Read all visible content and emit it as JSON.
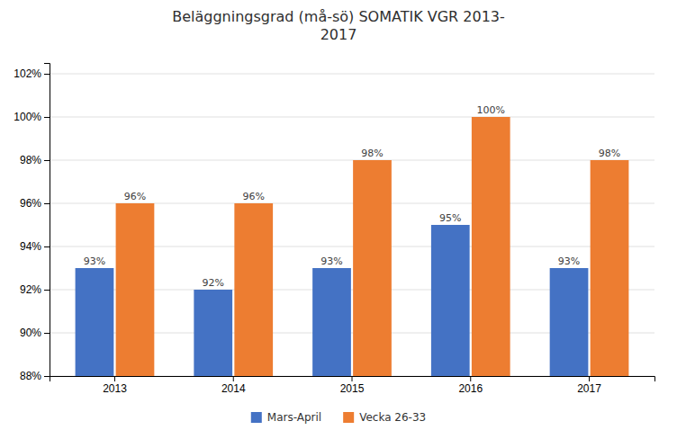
{
  "chart_data": {
    "type": "bar",
    "title": "Beläggningsgrad (må-sö) SOMATIK VGR 2013-\n2017",
    "categories": [
      "2013",
      "2014",
      "2015",
      "2016",
      "2017"
    ],
    "series": [
      {
        "name": "Mars-April",
        "color": "#4472C4",
        "values": [
          0.93,
          0.92,
          0.93,
          0.95,
          0.93
        ],
        "value_labels": [
          "93%",
          "92%",
          "93%",
          "95%",
          "93%"
        ]
      },
      {
        "name": "Vecka 26-33",
        "color": "#ED7D31",
        "values": [
          0.96,
          0.96,
          0.98,
          1.0,
          0.98
        ],
        "value_labels": [
          "96%",
          "96%",
          "98%",
          "100%",
          "98%"
        ]
      }
    ],
    "ylim": [
      0.88,
      1.025
    ],
    "yticks": [
      {
        "value": 0.88,
        "label": "88%"
      },
      {
        "value": 0.9,
        "label": "90%"
      },
      {
        "value": 0.92,
        "label": "92%"
      },
      {
        "value": 0.94,
        "label": "94%"
      },
      {
        "value": 0.96,
        "label": "96%"
      },
      {
        "value": 0.98,
        "label": "98%"
      },
      {
        "value": 1.0,
        "label": "100%"
      },
      {
        "value": 1.02,
        "label": "102%"
      }
    ],
    "grid": true,
    "legend": "bottom",
    "data_labels": true
  }
}
